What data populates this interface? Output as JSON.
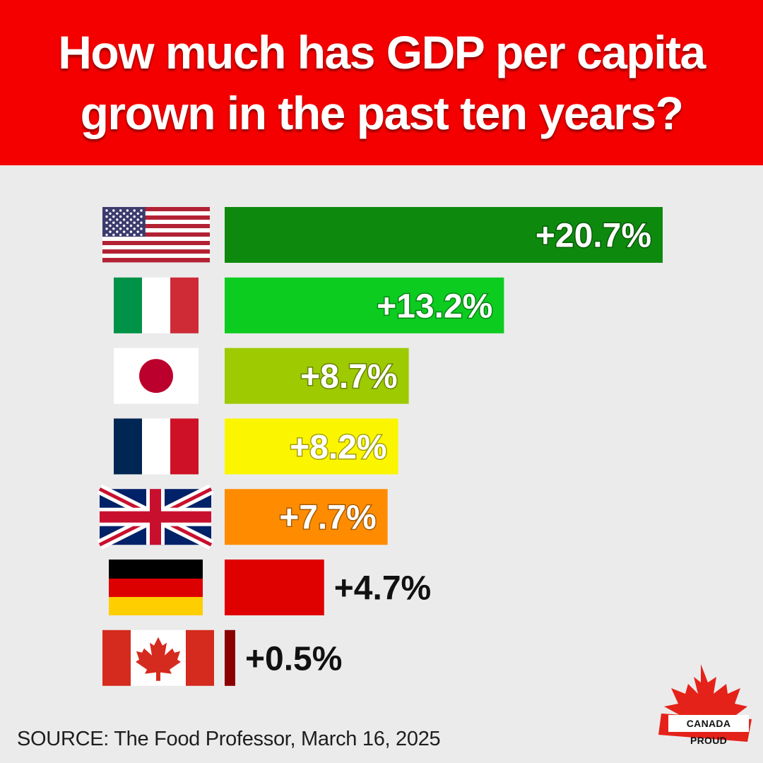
{
  "header": {
    "title": "How much has GDP per capita grown in the past ten years?"
  },
  "chart_data": {
    "type": "bar",
    "orientation": "horizontal",
    "title": "How much has GDP per capita grown in the past ten years?",
    "categories": [
      "United States",
      "Italy",
      "Japan",
      "France",
      "United Kingdom",
      "Germany",
      "Canada"
    ],
    "flags": [
      "us-flag-icon",
      "italy-flag-icon",
      "japan-flag-icon",
      "france-flag-icon",
      "uk-flag-icon",
      "germany-flag-icon",
      "canada-flag-icon"
    ],
    "values": [
      20.7,
      13.2,
      8.7,
      8.2,
      7.7,
      4.7,
      0.5
    ],
    "labels": [
      "+20.7%",
      "+13.2%",
      "+8.7%",
      "+8.2%",
      "+7.7%",
      "+4.7%",
      "+0.5%"
    ],
    "colors": [
      "#0d8a0d",
      "#0ccc1f",
      "#9dca00",
      "#fbf600",
      "#ff8c00",
      "#df0000",
      "#8b0000"
    ],
    "unit": "%",
    "xlim": [
      0,
      20.7
    ]
  },
  "footer": {
    "source": "SOURCE: The Food Professor, March 16, 2025"
  },
  "logo": {
    "text": "CANADA PROUD"
  }
}
